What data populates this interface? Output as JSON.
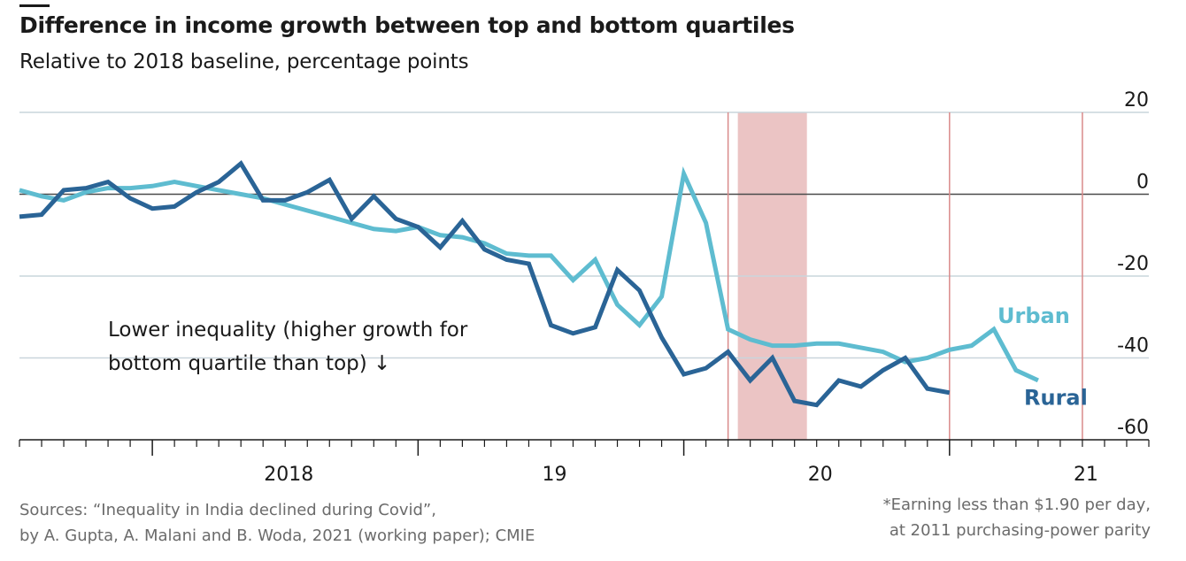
{
  "header": {
    "title": "Difference in income growth between top and bottom quartiles",
    "subtitle": "Relative to 2018 baseline, percentage points"
  },
  "annotation": {
    "line1": "Lower inequality (higher growth for",
    "line2": "bottom quartile than top) ↓"
  },
  "footer": {
    "source_line1": "Sources: “Inequality in India declined during Covid”,",
    "source_line2": "by A. Gupta, A. Malani and B. Woda, 2021 (working paper); CMIE",
    "note_line1": "*Earning less than $1.90 per day,",
    "note_line2": "at 2011 purchasing-power parity"
  },
  "chart_data": {
    "type": "line",
    "title": "Difference in income growth between top and bottom quartiles",
    "subtitle": "Relative to 2018 baseline, percentage points",
    "ylim": [
      -60,
      20
    ],
    "yticks": [
      20,
      0,
      -20,
      -40,
      -60
    ],
    "ytick_labels": [
      "20",
      "0",
      "-20",
      "-40",
      "-60"
    ],
    "xlim": [
      "2017-07",
      "2021-10"
    ],
    "xtick_labels": [
      {
        "label": "2018",
        "x": "2018-07"
      },
      {
        "label": "19",
        "x": "2019-07"
      },
      {
        "label": "20",
        "x": "2020-07"
      },
      {
        "label": "21",
        "x": "2021-07"
      }
    ],
    "grid": true,
    "colors": {
      "urban": "#5ebcd0",
      "rural": "#2a6496",
      "highlight": "#ebc4c4",
      "marker": "#d98a8a",
      "grid": "#c9d5dc"
    },
    "vertical_markers": [
      "2020-03",
      "2021-01",
      "2021-07"
    ],
    "shaded_region": [
      "2020-04",
      "2020-06"
    ],
    "series": [
      {
        "name": "Urban",
        "label_x": "2021-05",
        "x": [
          "2017-07",
          "2017-08",
          "2017-09",
          "2017-10",
          "2017-11",
          "2017-12",
          "2018-01",
          "2018-02",
          "2018-03",
          "2018-04",
          "2018-05",
          "2018-06",
          "2018-07",
          "2018-08",
          "2018-09",
          "2018-10",
          "2018-11",
          "2018-12",
          "2019-01",
          "2019-02",
          "2019-03",
          "2019-04",
          "2019-05",
          "2019-06",
          "2019-07",
          "2019-08",
          "2019-09",
          "2019-10",
          "2019-11",
          "2019-12",
          "2020-01",
          "2020-02",
          "2020-03",
          "2020-04",
          "2020-05",
          "2020-06",
          "2020-07",
          "2020-08",
          "2020-09",
          "2020-10",
          "2020-11",
          "2020-12",
          "2021-01",
          "2021-02",
          "2021-03",
          "2021-04",
          "2021-05",
          "2021-06",
          "2021-07",
          "2021-08",
          "2021-09"
        ],
        "values": [
          1,
          -0.5,
          -1.5,
          0.5,
          1.5,
          1.5,
          2,
          3,
          2,
          1,
          0,
          -1,
          -2.5,
          -4,
          -5.5,
          -7,
          -8.5,
          -9,
          -8,
          -10,
          -10.5,
          -12,
          -14.5,
          -15,
          -15,
          -21,
          -16,
          -27,
          -32,
          -25,
          5,
          -7,
          -33,
          -35.5,
          -37,
          -37,
          -36.5,
          -36.5,
          -37.5,
          -38.5,
          -41,
          -40,
          -38,
          -37,
          -33,
          -43,
          -45.5,
          null,
          null,
          null,
          null
        ]
      },
      {
        "name": "Rural",
        "label_x": "2021-06",
        "x": [
          "2017-07",
          "2017-08",
          "2017-09",
          "2017-10",
          "2017-11",
          "2017-12",
          "2018-01",
          "2018-02",
          "2018-03",
          "2018-04",
          "2018-05",
          "2018-06",
          "2018-07",
          "2018-08",
          "2018-09",
          "2018-10",
          "2018-11",
          "2018-12",
          "2019-01",
          "2019-02",
          "2019-03",
          "2019-04",
          "2019-05",
          "2019-06",
          "2019-07",
          "2019-08",
          "2019-09",
          "2019-10",
          "2019-11",
          "2019-12",
          "2020-01",
          "2020-02",
          "2020-03",
          "2020-04",
          "2020-05",
          "2020-06",
          "2020-07",
          "2020-08",
          "2020-09",
          "2020-10",
          "2020-11",
          "2020-12",
          "2021-01",
          "2021-02",
          "2021-03",
          "2021-04",
          "2021-05",
          "2021-06",
          "2021-07",
          "2021-08",
          "2021-09"
        ],
        "values": [
          -5.5,
          -5,
          1,
          1.5,
          3,
          -1,
          -3.5,
          -3,
          0.5,
          3,
          7.5,
          -1.5,
          -1.5,
          0.5,
          3.5,
          -6,
          -0.5,
          -6,
          -8,
          -13,
          -6.5,
          -13.5,
          -16,
          -17,
          -32,
          -34,
          -32.5,
          -18.5,
          -23.5,
          -35,
          -44,
          -42.5,
          -38.5,
          -45.5,
          -40,
          -50.5,
          -51.5,
          -45.5,
          -47,
          -43,
          -40,
          -47.5,
          -48.5,
          null,
          null,
          null,
          null,
          null,
          null,
          null,
          null
        ]
      }
    ]
  }
}
